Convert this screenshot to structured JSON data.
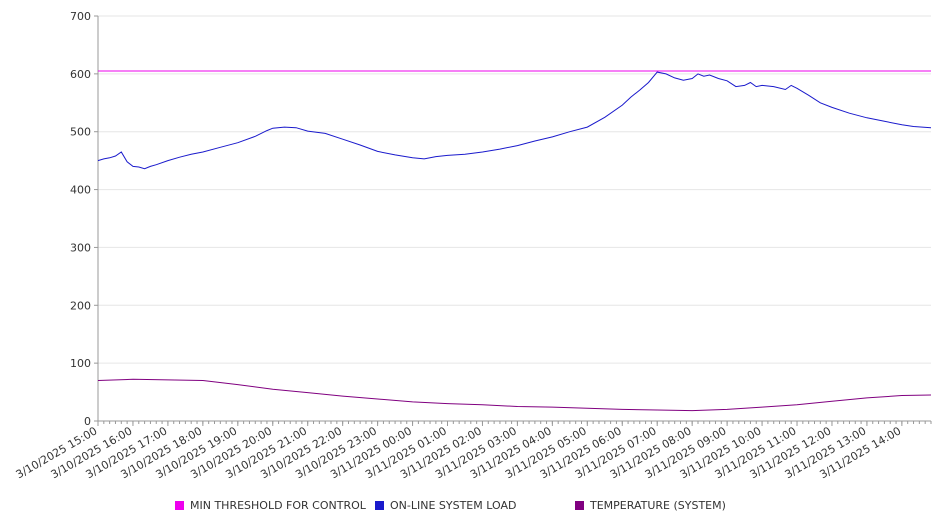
{
  "chart_data": {
    "type": "line",
    "title": "",
    "xlabel": "",
    "ylabel": "",
    "ylim": [
      0,
      700
    ],
    "yticks": [
      "0",
      "100",
      "200",
      "300",
      "400",
      "500",
      "600",
      "700"
    ],
    "xlim": [
      "3/10/2025 15:00",
      "3/11/2025 14:50"
    ],
    "xticks": [
      "3/10/2025 15:00",
      "3/10/2025 16:00",
      "3/10/2025 17:00",
      "3/10/2025 18:00",
      "3/10/2025 19:00",
      "3/10/2025 20:00",
      "3/10/2025 21:00",
      "3/10/2025 22:00",
      "3/10/2025 23:00",
      "3/11/2025 00:00",
      "3/11/2025 01:00",
      "3/11/2025 02:00",
      "3/11/2025 03:00",
      "3/11/2025 04:00",
      "3/11/2025 05:00",
      "3/11/2025 06:00",
      "3/11/2025 07:00",
      "3/11/2025 08:00",
      "3/11/2025 09:00",
      "3/11/2025 10:00",
      "3/11/2025 11:00",
      "3/11/2025 12:00",
      "3/11/2025 13:00",
      "3/11/2025 14:00"
    ],
    "grid": true,
    "legend_position": "bottom",
    "series": [
      {
        "name": "MIN THRESHOLD FOR CONTROL",
        "color": "#ee00ee",
        "points": [
          [
            "3/10/2025 15:00",
            605
          ],
          [
            "3/11/2025 14:50",
            605
          ]
        ]
      },
      {
        "name": "ON-LINE SYSTEM LOAD",
        "color": "#1a1acc",
        "points": [
          [
            "3/10/2025 15:00",
            450
          ],
          [
            "3/10/2025 15:10",
            453
          ],
          [
            "3/10/2025 15:20",
            455
          ],
          [
            "3/10/2025 15:30",
            458
          ],
          [
            "3/10/2025 15:40",
            465
          ],
          [
            "3/10/2025 15:50",
            448
          ],
          [
            "3/10/2025 16:00",
            440
          ],
          [
            "3/10/2025 16:10",
            439
          ],
          [
            "3/10/2025 16:20",
            436
          ],
          [
            "3/10/2025 16:30",
            440
          ],
          [
            "3/10/2025 16:40",
            443
          ],
          [
            "3/10/2025 17:00",
            450
          ],
          [
            "3/10/2025 17:20",
            456
          ],
          [
            "3/10/2025 17:40",
            461
          ],
          [
            "3/10/2025 18:00",
            465
          ],
          [
            "3/10/2025 18:30",
            473
          ],
          [
            "3/10/2025 19:00",
            481
          ],
          [
            "3/10/2025 19:30",
            492
          ],
          [
            "3/10/2025 19:50",
            502
          ],
          [
            "3/10/2025 20:00",
            506
          ],
          [
            "3/10/2025 20:20",
            508
          ],
          [
            "3/10/2025 20:40",
            507
          ],
          [
            "3/10/2025 21:00",
            501
          ],
          [
            "3/10/2025 21:30",
            497
          ],
          [
            "3/10/2025 22:00",
            487
          ],
          [
            "3/10/2025 22:30",
            477
          ],
          [
            "3/10/2025 23:00",
            466
          ],
          [
            "3/10/2025 23:30",
            460
          ],
          [
            "3/11/2025 00:00",
            455
          ],
          [
            "3/11/2025 00:20",
            453
          ],
          [
            "3/11/2025 00:40",
            457
          ],
          [
            "3/11/2025 01:00",
            459
          ],
          [
            "3/11/2025 01:30",
            461
          ],
          [
            "3/11/2025 02:00",
            465
          ],
          [
            "3/11/2025 02:30",
            470
          ],
          [
            "3/11/2025 03:00",
            476
          ],
          [
            "3/11/2025 03:30",
            484
          ],
          [
            "3/11/2025 04:00",
            491
          ],
          [
            "3/11/2025 04:30",
            500
          ],
          [
            "3/11/2025 05:00",
            508
          ],
          [
            "3/11/2025 05:30",
            525
          ],
          [
            "3/11/2025 06:00",
            546
          ],
          [
            "3/11/2025 06:15",
            560
          ],
          [
            "3/11/2025 06:30",
            572
          ],
          [
            "3/11/2025 06:45",
            585
          ],
          [
            "3/11/2025 07:00",
            603
          ],
          [
            "3/11/2025 07:15",
            600
          ],
          [
            "3/11/2025 07:30",
            593
          ],
          [
            "3/11/2025 07:45",
            589
          ],
          [
            "3/11/2025 08:00",
            592
          ],
          [
            "3/11/2025 08:10",
            600
          ],
          [
            "3/11/2025 08:20",
            596
          ],
          [
            "3/11/2025 08:30",
            598
          ],
          [
            "3/11/2025 08:45",
            592
          ],
          [
            "3/11/2025 09:00",
            588
          ],
          [
            "3/11/2025 09:15",
            578
          ],
          [
            "3/11/2025 09:30",
            580
          ],
          [
            "3/11/2025 09:40",
            585
          ],
          [
            "3/11/2025 09:50",
            578
          ],
          [
            "3/11/2025 10:00",
            580
          ],
          [
            "3/11/2025 10:20",
            578
          ],
          [
            "3/11/2025 10:40",
            573
          ],
          [
            "3/11/2025 10:50",
            580
          ],
          [
            "3/11/2025 11:00",
            575
          ],
          [
            "3/11/2025 11:20",
            563
          ],
          [
            "3/11/2025 11:40",
            550
          ],
          [
            "3/11/2025 12:00",
            542
          ],
          [
            "3/11/2025 12:30",
            532
          ],
          [
            "3/11/2025 13:00",
            524
          ],
          [
            "3/11/2025 13:30",
            518
          ],
          [
            "3/11/2025 14:00",
            512
          ],
          [
            "3/11/2025 14:20",
            509
          ],
          [
            "3/11/2025 14:50",
            507
          ]
        ]
      },
      {
        "name": "TEMPERATURE (SYSTEM)",
        "color": "#800080",
        "points": [
          [
            "3/10/2025 15:00",
            70
          ],
          [
            "3/10/2025 16:00",
            72
          ],
          [
            "3/10/2025 17:00",
            71
          ],
          [
            "3/10/2025 18:00",
            70
          ],
          [
            "3/10/2025 19:00",
            63
          ],
          [
            "3/10/2025 20:00",
            55
          ],
          [
            "3/10/2025 21:00",
            49
          ],
          [
            "3/10/2025 22:00",
            43
          ],
          [
            "3/10/2025 23:00",
            38
          ],
          [
            "3/11/2025 00:00",
            33
          ],
          [
            "3/11/2025 01:00",
            30
          ],
          [
            "3/11/2025 02:00",
            28
          ],
          [
            "3/11/2025 03:00",
            25
          ],
          [
            "3/11/2025 04:00",
            24
          ],
          [
            "3/11/2025 05:00",
            22
          ],
          [
            "3/11/2025 06:00",
            20
          ],
          [
            "3/11/2025 07:00",
            19
          ],
          [
            "3/11/2025 08:00",
            18
          ],
          [
            "3/11/2025 09:00",
            20
          ],
          [
            "3/11/2025 10:00",
            24
          ],
          [
            "3/11/2025 11:00",
            28
          ],
          [
            "3/11/2025 12:00",
            34
          ],
          [
            "3/11/2025 13:00",
            40
          ],
          [
            "3/11/2025 14:00",
            44
          ],
          [
            "3/11/2025 14:50",
            45
          ]
        ]
      }
    ]
  }
}
